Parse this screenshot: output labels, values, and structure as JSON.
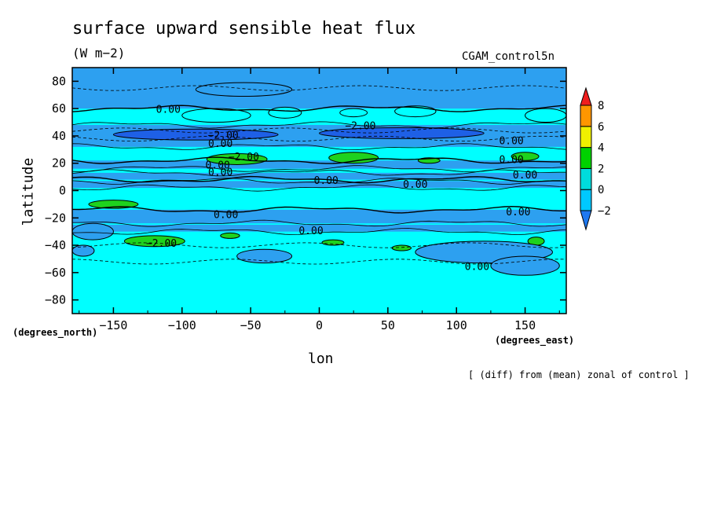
{
  "chart_data": {
    "type": "heatmap",
    "title": "surface upward sensible heat flux",
    "units": "(W m−2)",
    "dataset": "CGAM_control5n",
    "xlabel": "lon",
    "ylabel": "latitude",
    "x_unit": "(degrees_east)",
    "y_unit": "(degrees_north)",
    "footnote": "[ (diff) from (mean) zonal of control ]",
    "xlim": [
      -180,
      180
    ],
    "ylim": [
      -90,
      90
    ],
    "x_ticks": [
      -150,
      -100,
      -50,
      0,
      50,
      100,
      150
    ],
    "x_tick_labels": [
      "−150",
      "−100",
      "−50",
      "0",
      "50",
      "100",
      "150"
    ],
    "y_ticks": [
      -80,
      -60,
      -40,
      -20,
      0,
      20,
      40,
      60,
      80
    ],
    "y_tick_labels": [
      "−80",
      "−60",
      "−40",
      "−20",
      "0",
      "20",
      "40",
      "60",
      "80"
    ],
    "colorbar": {
      "levels": [
        -2,
        0,
        2,
        4,
        6,
        8
      ],
      "level_labels": [
        "−2",
        "0",
        "2",
        "4",
        "6",
        "8"
      ],
      "colors": [
        "#1e78f0",
        "#00c8ff",
        "#00dcdc",
        "#00d200",
        "#f0f000",
        "#ff9600",
        "#f01e1e"
      ]
    },
    "colors": {
      "below_minus2": "#1e78f0",
      "minus2_to_0": "#2da0f0",
      "zero_to_2": "#00ffff",
      "two_to_4": "#1ed21e",
      "deep_negative": "#1e60e6"
    },
    "contour_labels": [
      {
        "text": "0.00",
        "lon": -110,
        "lat": 57
      },
      {
        "text": "−2.00",
        "lon": 30,
        "lat": 45
      },
      {
        "text": "0.00",
        "lon": 140,
        "lat": 34
      },
      {
        "text": "−2.00",
        "lon": -70,
        "lat": 38
      },
      {
        "text": "0.00",
        "lon": -72,
        "lat": 32
      },
      {
        "text": "−2.00",
        "lon": -55,
        "lat": 22
      },
      {
        "text": "0.00",
        "lon": 140,
        "lat": 20
      },
      {
        "text": "0.00",
        "lon": -74,
        "lat": 16
      },
      {
        "text": "0.00",
        "lon": -72,
        "lat": 11
      },
      {
        "text": "0.00",
        "lon": 150,
        "lat": 9
      },
      {
        "text": "0.00",
        "lon": 5,
        "lat": 5
      },
      {
        "text": "0.00",
        "lon": 70,
        "lat": 2
      },
      {
        "text": "0.00",
        "lon": -68,
        "lat": -20
      },
      {
        "text": "0.00",
        "lon": 145,
        "lat": -18
      },
      {
        "text": "0.00",
        "lon": -6,
        "lat": -32
      },
      {
        "text": "−2.00",
        "lon": -115,
        "lat": -41
      },
      {
        "text": "0.00",
        "lon": 115,
        "lat": -58
      }
    ]
  }
}
